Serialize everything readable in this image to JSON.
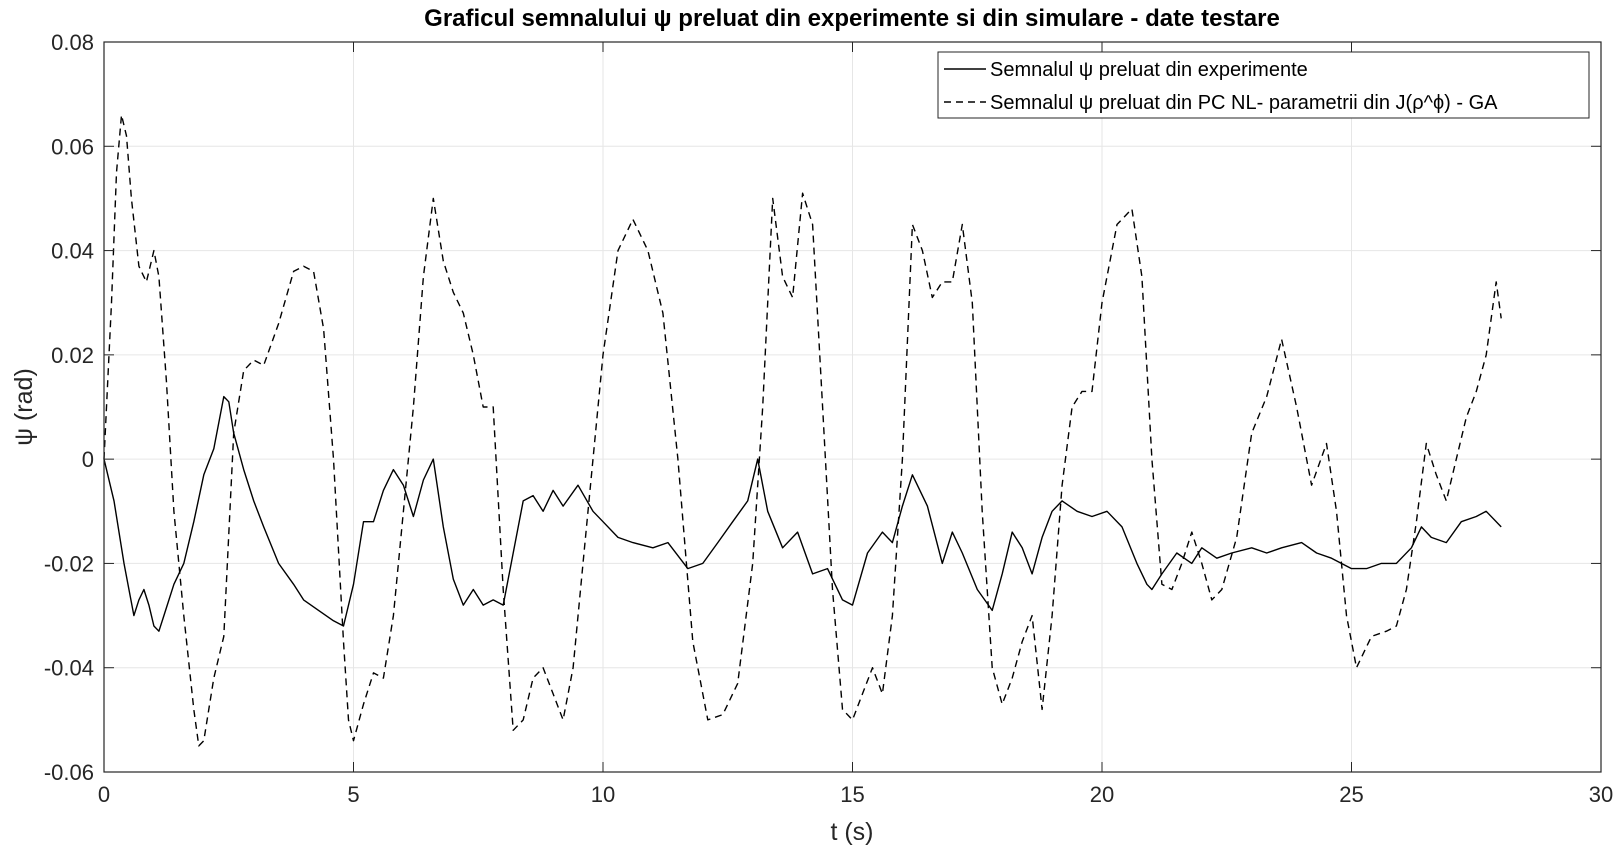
{
  "chart_data": {
    "type": "line",
    "title": "Graficul semnalului ψ preluat din experimente si din simulare - date testare",
    "xlabel": "t (s)",
    "ylabel": "ψ (rad)",
    "xlim": [
      0,
      30
    ],
    "ylim": [
      -0.06,
      0.08
    ],
    "xticks": [
      0,
      5,
      10,
      15,
      20,
      25,
      30
    ],
    "xtick_labels": [
      "0",
      "5",
      "10",
      "15",
      "20",
      "25",
      "30"
    ],
    "yticks": [
      -0.06,
      -0.04,
      -0.02,
      0,
      0.02,
      0.04,
      0.06,
      0.08
    ],
    "ytick_labels": [
      "-0.06",
      "-0.04",
      "-0.02",
      "0",
      "0.02",
      "0.04",
      "0.06",
      "0.08"
    ],
    "grid": true,
    "legend_position": "top-right",
    "series": [
      {
        "name": "Semnalul ψ preluat din experimente",
        "style": "solid",
        "color": "#000000",
        "x": [
          0,
          0.2,
          0.4,
          0.6,
          0.7,
          0.8,
          0.9,
          1.0,
          1.1,
          1.2,
          1.4,
          1.6,
          1.8,
          2.0,
          2.2,
          2.4,
          2.5,
          2.6,
          2.8,
          3.0,
          3.2,
          3.5,
          3.8,
          4.0,
          4.3,
          4.6,
          4.8,
          5.0,
          5.2,
          5.4,
          5.6,
          5.8,
          6.0,
          6.2,
          6.4,
          6.6,
          6.8,
          7.0,
          7.2,
          7.4,
          7.6,
          7.8,
          8.0,
          8.2,
          8.4,
          8.6,
          8.8,
          9.0,
          9.2,
          9.5,
          9.8,
          10.0,
          10.3,
          10.6,
          11.0,
          11.3,
          11.7,
          12.0,
          12.3,
          12.6,
          12.9,
          13.1,
          13.3,
          13.6,
          13.9,
          14.2,
          14.5,
          14.8,
          15.0,
          15.3,
          15.6,
          15.8,
          16.0,
          16.2,
          16.5,
          16.8,
          17.0,
          17.2,
          17.5,
          17.8,
          18.0,
          18.2,
          18.4,
          18.6,
          18.8,
          19.0,
          19.2,
          19.5,
          19.8,
          20.1,
          20.4,
          20.7,
          20.9,
          21.0,
          21.2,
          21.5,
          21.8,
          22.0,
          22.3,
          22.6,
          23.0,
          23.3,
          23.6,
          24.0,
          24.3,
          24.6,
          25.0,
          25.3,
          25.6,
          25.9,
          26.2,
          26.4,
          26.6,
          26.9,
          27.2,
          27.5,
          27.7,
          28.0
        ],
        "y": [
          0.0,
          -0.008,
          -0.02,
          -0.03,
          -0.027,
          -0.025,
          -0.028,
          -0.032,
          -0.033,
          -0.03,
          -0.024,
          -0.02,
          -0.012,
          -0.003,
          0.002,
          0.012,
          0.011,
          0.005,
          -0.002,
          -0.008,
          -0.013,
          -0.02,
          -0.024,
          -0.027,
          -0.029,
          -0.031,
          -0.032,
          -0.024,
          -0.012,
          -0.012,
          -0.006,
          -0.002,
          -0.005,
          -0.011,
          -0.004,
          0.0,
          -0.013,
          -0.023,
          -0.028,
          -0.025,
          -0.028,
          -0.027,
          -0.028,
          -0.018,
          -0.008,
          -0.007,
          -0.01,
          -0.006,
          -0.009,
          -0.005,
          -0.01,
          -0.012,
          -0.015,
          -0.016,
          -0.017,
          -0.016,
          -0.021,
          -0.02,
          -0.016,
          -0.012,
          -0.008,
          0.0,
          -0.01,
          -0.017,
          -0.014,
          -0.022,
          -0.021,
          -0.027,
          -0.028,
          -0.018,
          -0.014,
          -0.016,
          -0.009,
          -0.003,
          -0.009,
          -0.02,
          -0.014,
          -0.018,
          -0.025,
          -0.029,
          -0.022,
          -0.014,
          -0.017,
          -0.022,
          -0.015,
          -0.01,
          -0.008,
          -0.01,
          -0.011,
          -0.01,
          -0.013,
          -0.02,
          -0.024,
          -0.025,
          -0.022,
          -0.018,
          -0.02,
          -0.017,
          -0.019,
          -0.018,
          -0.017,
          -0.018,
          -0.017,
          -0.016,
          -0.018,
          -0.019,
          -0.021,
          -0.021,
          -0.02,
          -0.02,
          -0.017,
          -0.013,
          -0.015,
          -0.016,
          -0.012,
          -0.011,
          -0.01,
          -0.013
        ]
      },
      {
        "name": "Semnalul ψ preluat din PC NL- parametrii din J(ρ^ϕ) - GA",
        "style": "dashed",
        "color": "#000000",
        "x": [
          0,
          0.15,
          0.25,
          0.35,
          0.45,
          0.55,
          0.7,
          0.85,
          1.0,
          1.1,
          1.25,
          1.4,
          1.6,
          1.8,
          1.9,
          2.0,
          2.2,
          2.4,
          2.6,
          2.8,
          3.0,
          3.2,
          3.5,
          3.8,
          4.0,
          4.2,
          4.4,
          4.6,
          4.8,
          4.9,
          5.0,
          5.2,
          5.4,
          5.6,
          5.8,
          6.0,
          6.2,
          6.4,
          6.6,
          6.8,
          7.0,
          7.2,
          7.4,
          7.6,
          7.8,
          8.0,
          8.2,
          8.4,
          8.6,
          8.8,
          9.0,
          9.2,
          9.4,
          9.6,
          9.8,
          10.0,
          10.3,
          10.6,
          10.9,
          11.2,
          11.5,
          11.8,
          12.1,
          12.4,
          12.7,
          13.0,
          13.2,
          13.4,
          13.6,
          13.8,
          14.0,
          14.2,
          14.4,
          14.6,
          14.8,
          15.0,
          15.2,
          15.4,
          15.6,
          15.8,
          16.0,
          16.2,
          16.4,
          16.6,
          16.8,
          17.0,
          17.2,
          17.4,
          17.6,
          17.8,
          18.0,
          18.2,
          18.4,
          18.6,
          18.8,
          19.0,
          19.2,
          19.4,
          19.6,
          19.8,
          20.0,
          20.3,
          20.6,
          20.8,
          21.0,
          21.2,
          21.4,
          21.6,
          21.8,
          22.0,
          22.2,
          22.4,
          22.7,
          23.0,
          23.3,
          23.6,
          23.9,
          24.2,
          24.5,
          24.7,
          24.9,
          25.1,
          25.4,
          25.7,
          25.9,
          26.1,
          26.3,
          26.5,
          26.7,
          26.9,
          27.1,
          27.3,
          27.5,
          27.7,
          27.9,
          28.0
        ],
        "y": [
          0.0,
          0.03,
          0.055,
          0.066,
          0.062,
          0.05,
          0.037,
          0.034,
          0.04,
          0.035,
          0.015,
          -0.01,
          -0.03,
          -0.048,
          -0.055,
          -0.054,
          -0.042,
          -0.034,
          0.005,
          0.017,
          0.019,
          0.018,
          0.026,
          0.036,
          0.037,
          0.036,
          0.025,
          0.0,
          -0.035,
          -0.05,
          -0.054,
          -0.047,
          -0.041,
          -0.042,
          -0.03,
          -0.01,
          0.01,
          0.035,
          0.05,
          0.038,
          0.032,
          0.028,
          0.02,
          0.01,
          0.01,
          -0.025,
          -0.052,
          -0.05,
          -0.042,
          -0.04,
          -0.045,
          -0.05,
          -0.04,
          -0.02,
          0.0,
          0.02,
          0.04,
          0.046,
          0.04,
          0.028,
          0.0,
          -0.035,
          -0.05,
          -0.049,
          -0.043,
          -0.02,
          0.01,
          0.05,
          0.035,
          0.031,
          0.051,
          0.045,
          0.01,
          -0.025,
          -0.048,
          -0.05,
          -0.045,
          -0.04,
          -0.045,
          -0.03,
          0.0,
          0.045,
          0.04,
          0.031,
          0.034,
          0.034,
          0.045,
          0.03,
          -0.01,
          -0.04,
          -0.047,
          -0.042,
          -0.035,
          -0.03,
          -0.048,
          -0.03,
          -0.005,
          0.01,
          0.013,
          0.013,
          0.03,
          0.045,
          0.048,
          0.035,
          0.0,
          -0.024,
          -0.025,
          -0.02,
          -0.014,
          -0.02,
          -0.027,
          -0.025,
          -0.015,
          0.005,
          0.012,
          0.023,
          0.01,
          -0.005,
          0.003,
          -0.01,
          -0.03,
          -0.04,
          -0.034,
          -0.033,
          -0.032,
          -0.025,
          -0.012,
          0.003,
          -0.003,
          -0.008,
          0.0,
          0.008,
          0.013,
          0.02,
          0.034,
          0.027
        ]
      }
    ]
  }
}
